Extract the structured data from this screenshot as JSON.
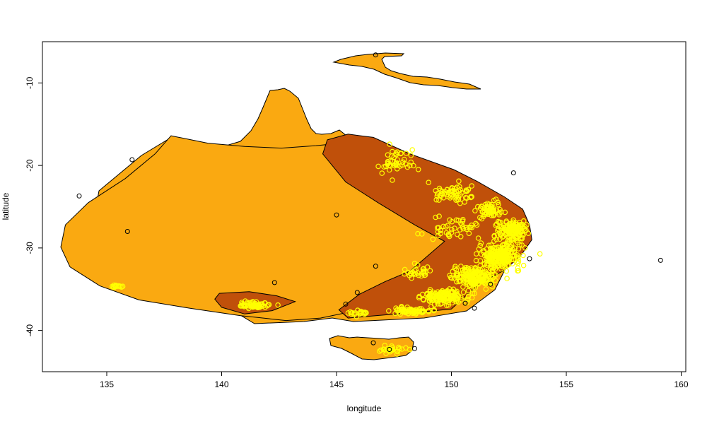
{
  "chart_data": {
    "type": "scatter",
    "title": "",
    "xlabel": "longitude",
    "ylabel": "latitude",
    "xlim": [
      132.2,
      160.2
    ],
    "ylim": [
      -45.0,
      -5.0
    ],
    "x_ticks": [
      135,
      140,
      145,
      150,
      155,
      160
    ],
    "y_ticks": [
      -10,
      -20,
      -30,
      -40
    ],
    "grid": false,
    "legend": "none",
    "colors": {
      "land": "#FAA911",
      "range_polygon": "#FAA911",
      "core_polygon": "#C0500A",
      "occurrence_points": "#FFFF00",
      "outline": "#000000"
    },
    "regions": [
      {
        "name": "outer range polygon",
        "vertices": [
          [
            137.8,
            -16.4
          ],
          [
            139.4,
            -17.3
          ],
          [
            141,
            -17.7
          ],
          [
            142.6,
            -17.9
          ],
          [
            144.1,
            -17.6
          ],
          [
            145.6,
            -17.2
          ],
          [
            149.7,
            -29.2
          ],
          [
            148.2,
            -33.7
          ],
          [
            146.2,
            -37.4
          ],
          [
            144.3,
            -38.5
          ],
          [
            142.8,
            -38.8
          ],
          [
            140.8,
            -38.2
          ],
          [
            138.6,
            -37.3
          ],
          [
            136.4,
            -36.3
          ],
          [
            134.7,
            -34.6
          ],
          [
            133.4,
            -32.3
          ],
          [
            133,
            -29.9
          ],
          [
            133.2,
            -27.2
          ],
          [
            134.2,
            -24.5
          ],
          [
            135.8,
            -21.6
          ],
          [
            137.1,
            -18.6
          ]
        ]
      },
      {
        "name": "core range polygon",
        "vertices": [
          [
            144.6,
            -16.9
          ],
          [
            145.5,
            -16.2
          ],
          [
            146.6,
            -16.6
          ],
          [
            148.2,
            -18.6
          ],
          [
            150.1,
            -20.5
          ],
          [
            151.1,
            -21.9
          ],
          [
            152.3,
            -23.8
          ],
          [
            153.1,
            -25.3
          ],
          [
            153.4,
            -27.2
          ],
          [
            153.5,
            -29
          ],
          [
            153,
            -31
          ],
          [
            152.3,
            -32.7
          ],
          [
            151.3,
            -34.2
          ],
          [
            150.7,
            -35.6
          ],
          [
            150,
            -37.4
          ],
          [
            148.6,
            -37.8
          ],
          [
            147.2,
            -38.1
          ],
          [
            145.5,
            -38.5
          ],
          [
            145.1,
            -37.5
          ],
          [
            146,
            -35.6
          ],
          [
            147.1,
            -34.1
          ],
          [
            148.2,
            -32.8
          ],
          [
            149.7,
            -29.2
          ],
          [
            148.4,
            -27.2
          ],
          [
            146.8,
            -24.5
          ],
          [
            145.4,
            -22
          ],
          [
            144.4,
            -18.6
          ]
        ]
      },
      {
        "name": "south-west core patch",
        "vertices": [
          [
            139.9,
            -35.5
          ],
          [
            141.2,
            -35.3
          ],
          [
            142.4,
            -35.8
          ],
          [
            143.2,
            -36.5
          ],
          [
            142.2,
            -37.6
          ],
          [
            141,
            -38
          ],
          [
            140,
            -37.2
          ],
          [
            139.7,
            -36.2
          ]
        ]
      }
    ],
    "black_points": [
      {
        "x": 146.7,
        "y": -6.6
      },
      {
        "x": 136.1,
        "y": -19.3
      },
      {
        "x": 133.8,
        "y": -23.7
      },
      {
        "x": 135.9,
        "y": -28
      },
      {
        "x": 145,
        "y": -26
      },
      {
        "x": 146.7,
        "y": -32.2
      },
      {
        "x": 142.3,
        "y": -34.2
      },
      {
        "x": 145.9,
        "y": -35.4
      },
      {
        "x": 145.4,
        "y": -36.8
      },
      {
        "x": 152.7,
        "y": -20.9
      },
      {
        "x": 153.4,
        "y": -31.3
      },
      {
        "x": 151.7,
        "y": -34.4
      },
      {
        "x": 150.6,
        "y": -36.7
      },
      {
        "x": 151,
        "y": -37.3
      },
      {
        "x": 159.1,
        "y": -31.5
      },
      {
        "x": 147.3,
        "y": -42.3
      },
      {
        "x": 148.4,
        "y": -42.2
      },
      {
        "x": 146.6,
        "y": -41.5
      }
    ],
    "yellow_clusters": [
      {
        "x": 152.1,
        "y": -31.0,
        "sx": 0.9,
        "sy": 1.5,
        "n": 260
      },
      {
        "x": 151.0,
        "y": -33.6,
        "sx": 0.9,
        "sy": 1.2,
        "n": 200
      },
      {
        "x": 149.7,
        "y": -35.9,
        "sx": 0.9,
        "sy": 0.9,
        "n": 160
      },
      {
        "x": 148.2,
        "y": -37.6,
        "sx": 0.8,
        "sy": 0.35,
        "n": 70
      },
      {
        "x": 152.6,
        "y": -27.9,
        "sx": 0.6,
        "sy": 1.3,
        "n": 140
      },
      {
        "x": 151.7,
        "y": -25.4,
        "sx": 0.6,
        "sy": 0.9,
        "n": 60
      },
      {
        "x": 150.0,
        "y": -23.4,
        "sx": 1.0,
        "sy": 1.1,
        "n": 60
      },
      {
        "x": 147.6,
        "y": -19.7,
        "sx": 0.9,
        "sy": 1.5,
        "n": 45
      },
      {
        "x": 150.0,
        "y": -27.6,
        "sx": 1.0,
        "sy": 1.2,
        "n": 45
      },
      {
        "x": 141.5,
        "y": -36.9,
        "sx": 0.7,
        "sy": 0.4,
        "n": 60
      },
      {
        "x": 135.4,
        "y": -34.7,
        "sx": 0.3,
        "sy": 0.2,
        "n": 15
      },
      {
        "x": 147.3,
        "y": -42.3,
        "sx": 0.7,
        "sy": 0.5,
        "n": 25
      },
      {
        "x": 146.0,
        "y": -37.9,
        "sx": 0.4,
        "sy": 0.3,
        "n": 20
      },
      {
        "x": 148.5,
        "y": -33.0,
        "sx": 0.6,
        "sy": 0.8,
        "n": 30
      }
    ]
  }
}
